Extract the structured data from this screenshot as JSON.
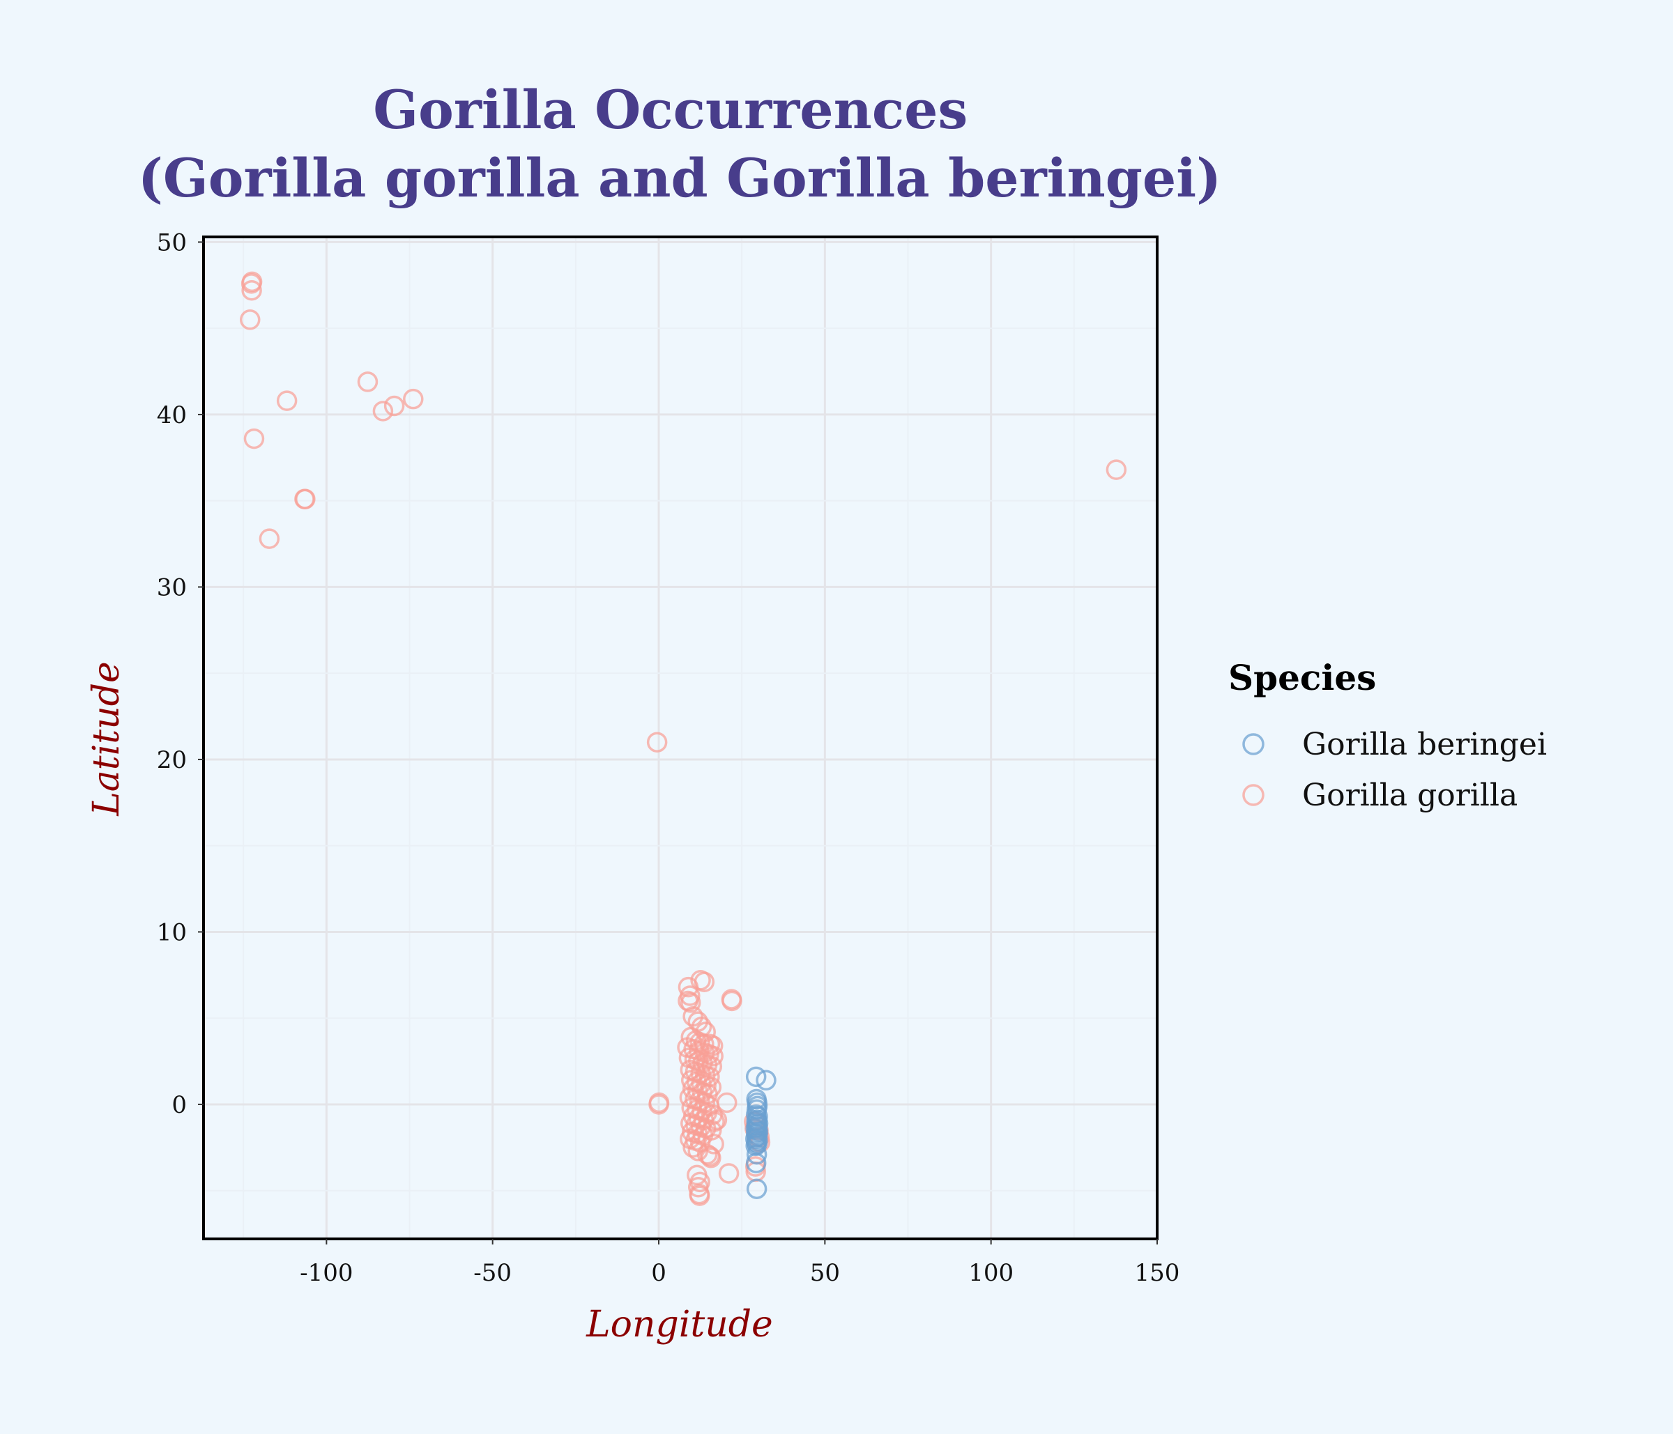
{
  "chart_data": {
    "type": "scatter",
    "title": "Gorilla Occurrences\n(Gorilla gorilla and Gorilla beringei)",
    "xlabel": "Longitude",
    "ylabel": "Latitude",
    "xlim": [
      -137,
      150
    ],
    "ylim": [
      -7.8,
      50.3
    ],
    "xticks": [
      -100,
      -50,
      0,
      50,
      100,
      150
    ],
    "yticks": [
      0,
      10,
      20,
      30,
      40,
      50
    ],
    "grid": true,
    "legend_title": "Species",
    "legend_position": "right",
    "colors": {
      "background": "#eff7fd",
      "title": "#483d8b",
      "axis_title": "#8b0000",
      "grid_major": "#e4e4e8",
      "grid_minor": "#eaf0f6",
      "frame": "#000000"
    },
    "series": [
      {
        "name": "Gorilla beringei",
        "color": "#6a9fd0",
        "points": [
          [
            29.3,
            1.6
          ],
          [
            32.3,
            1.4
          ],
          [
            29.4,
            0.3
          ],
          [
            29.6,
            0.1
          ],
          [
            29.7,
            -0.1
          ],
          [
            29.5,
            -0.3
          ],
          [
            29.3,
            -0.6
          ],
          [
            29.8,
            -0.7
          ],
          [
            29.6,
            -0.9
          ],
          [
            29.4,
            -1.0
          ],
          [
            29.9,
            -1.1
          ],
          [
            29.5,
            -1.2
          ],
          [
            29.7,
            -1.3
          ],
          [
            29.2,
            -1.4
          ],
          [
            29.6,
            -1.5
          ],
          [
            29.9,
            -1.6
          ],
          [
            29.3,
            -1.7
          ],
          [
            29.7,
            -1.8
          ],
          [
            29.5,
            -1.9
          ],
          [
            29.1,
            -2.0
          ],
          [
            29.8,
            -2.1
          ],
          [
            29.4,
            -2.2
          ],
          [
            29.6,
            -2.3
          ],
          [
            29.2,
            -2.4
          ],
          [
            29.5,
            -2.9
          ],
          [
            29.3,
            -3.4
          ],
          [
            29.5,
            -4.9
          ]
        ]
      },
      {
        "name": "Gorilla gorilla",
        "color": "#f8a095",
        "points": [
          [
            -122.6,
            47.6
          ],
          [
            -122.4,
            47.7
          ],
          [
            -122.5,
            47.2
          ],
          [
            -123.0,
            45.5
          ],
          [
            -121.8,
            38.6
          ],
          [
            -117.2,
            32.8
          ],
          [
            -111.9,
            40.8
          ],
          [
            -106.6,
            35.1
          ],
          [
            -106.4,
            35.1
          ],
          [
            -87.6,
            41.9
          ],
          [
            -83.0,
            40.2
          ],
          [
            -79.6,
            40.5
          ],
          [
            -73.9,
            40.9
          ],
          [
            137.7,
            36.8
          ],
          [
            -0.5,
            21.0
          ],
          [
            0.0,
            0.0
          ],
          [
            0.1,
            0.1
          ],
          [
            8.9,
            6.8
          ],
          [
            9.4,
            6.3
          ],
          [
            8.8,
            6.0
          ],
          [
            9.6,
            5.9
          ],
          [
            12.6,
            7.2
          ],
          [
            13.7,
            7.1
          ],
          [
            21.9,
            6.1
          ],
          [
            22.0,
            6.0
          ],
          [
            10.3,
            5.1
          ],
          [
            11.8,
            4.8
          ],
          [
            12.9,
            4.5
          ],
          [
            14.1,
            4.2
          ],
          [
            9.7,
            3.9
          ],
          [
            11.2,
            3.7
          ],
          [
            12.4,
            3.6
          ],
          [
            13.6,
            3.5
          ],
          [
            15.4,
            3.5
          ],
          [
            16.3,
            3.4
          ],
          [
            8.6,
            3.3
          ],
          [
            10.5,
            3.2
          ],
          [
            12.1,
            3.1
          ],
          [
            13.8,
            3.0
          ],
          [
            15.1,
            2.9
          ],
          [
            16.4,
            2.8
          ],
          [
            9.1,
            2.7
          ],
          [
            10.8,
            2.6
          ],
          [
            11.9,
            2.5
          ],
          [
            13.2,
            2.4
          ],
          [
            14.6,
            2.3
          ],
          [
            16.0,
            2.2
          ],
          [
            9.5,
            2.0
          ],
          [
            11.0,
            1.9
          ],
          [
            12.6,
            1.8
          ],
          [
            14.0,
            1.7
          ],
          [
            15.3,
            1.6
          ],
          [
            9.8,
            1.4
          ],
          [
            11.4,
            1.3
          ],
          [
            12.8,
            1.2
          ],
          [
            14.3,
            1.1
          ],
          [
            15.8,
            1.0
          ],
          [
            10.2,
            0.9
          ],
          [
            11.7,
            0.8
          ],
          [
            13.1,
            0.7
          ],
          [
            14.7,
            0.6
          ],
          [
            9.3,
            0.4
          ],
          [
            10.9,
            0.3
          ],
          [
            12.3,
            0.2
          ],
          [
            13.9,
            0.1
          ],
          [
            20.5,
            0.1
          ],
          [
            15.2,
            -0.1
          ],
          [
            9.9,
            -0.2
          ],
          [
            11.5,
            -0.3
          ],
          [
            13.0,
            -0.4
          ],
          [
            14.5,
            -0.5
          ],
          [
            16.2,
            -0.6
          ],
          [
            10.4,
            -0.7
          ],
          [
            12.0,
            -0.8
          ],
          [
            13.5,
            -0.9
          ],
          [
            17.5,
            -0.9
          ],
          [
            9.6,
            -1.1
          ],
          [
            11.1,
            -1.2
          ],
          [
            12.7,
            -1.3
          ],
          [
            14.2,
            -1.4
          ],
          [
            15.9,
            -1.5
          ],
          [
            10.0,
            -1.6
          ],
          [
            11.6,
            -1.7
          ],
          [
            13.3,
            -1.8
          ],
          [
            9.4,
            -2.0
          ],
          [
            11.0,
            -2.1
          ],
          [
            12.5,
            -2.2
          ],
          [
            16.6,
            -2.3
          ],
          [
            10.3,
            -2.5
          ],
          [
            11.8,
            -2.7
          ],
          [
            14.6,
            -2.9
          ],
          [
            15.4,
            -3.0
          ],
          [
            15.7,
            -3.1
          ],
          [
            28.9,
            -1.4
          ],
          [
            30.0,
            -1.5
          ],
          [
            30.3,
            -1.9
          ],
          [
            29.1,
            -3.6
          ],
          [
            29.2,
            -3.9
          ],
          [
            21.1,
            -4.0
          ],
          [
            11.5,
            -4.1
          ],
          [
            12.4,
            -4.5
          ],
          [
            11.9,
            -4.8
          ],
          [
            12.2,
            -5.2
          ],
          [
            12.3,
            -5.3
          ],
          [
            28.7,
            -1.0
          ],
          [
            30.5,
            -2.2
          ],
          [
            16.8,
            -1.0
          ]
        ]
      }
    ]
  }
}
